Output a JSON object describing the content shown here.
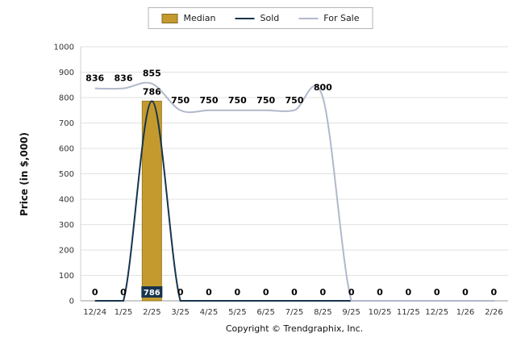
{
  "legend": {
    "items": [
      {
        "label": "Median",
        "type": "bar",
        "color": "#c49a2f"
      },
      {
        "label": "Sold",
        "type": "line",
        "color": "#17344d"
      },
      {
        "label": "For Sale",
        "type": "line",
        "color": "#b0b9cb"
      }
    ]
  },
  "y_axis_title": "Price (in $,000)",
  "footer": {
    "copyright": "Copyright © Trendgraphix, Inc."
  },
  "chart_data": {
    "type": "combo",
    "categories": [
      "12/24",
      "1/25",
      "2/25",
      "3/25",
      "4/25",
      "5/25",
      "6/25",
      "7/25",
      "8/25",
      "9/25",
      "10/25",
      "11/25",
      "12/25",
      "1/26",
      "2/26"
    ],
    "series": [
      {
        "name": "Median",
        "type": "bar",
        "color": "#c49a2f",
        "border_color": "#9a7c22",
        "values": [
          0,
          0,
          786,
          0,
          0,
          0,
          0,
          0,
          0,
          0,
          0,
          0,
          0,
          0,
          0
        ]
      },
      {
        "name": "Sold",
        "type": "line",
        "color": "#17344d",
        "values": [
          0,
          0,
          786,
          0,
          0,
          0,
          0,
          0,
          0,
          0,
          0,
          0,
          0,
          0,
          0
        ]
      },
      {
        "name": "For Sale",
        "type": "line",
        "color": "#b0b9cb",
        "values": [
          836,
          836,
          855,
          750,
          750,
          750,
          750,
          750,
          800,
          0,
          0,
          0,
          0,
          0,
          0
        ]
      }
    ],
    "ylabel": "Price (in $,000)",
    "ylim": [
      0,
      1000
    ],
    "ytick_step": 100,
    "grid": true,
    "legend_position": "top",
    "label_colors": {
      "text": "#000000",
      "sold_badge_bg": "#17344d",
      "sold_badge_text": "#ffffff"
    },
    "axis_colors": {
      "grid": "#e2e2e2",
      "x_axis": "#999999",
      "y_axis": "#cfcfcf",
      "tick_text": "#333333"
    }
  }
}
